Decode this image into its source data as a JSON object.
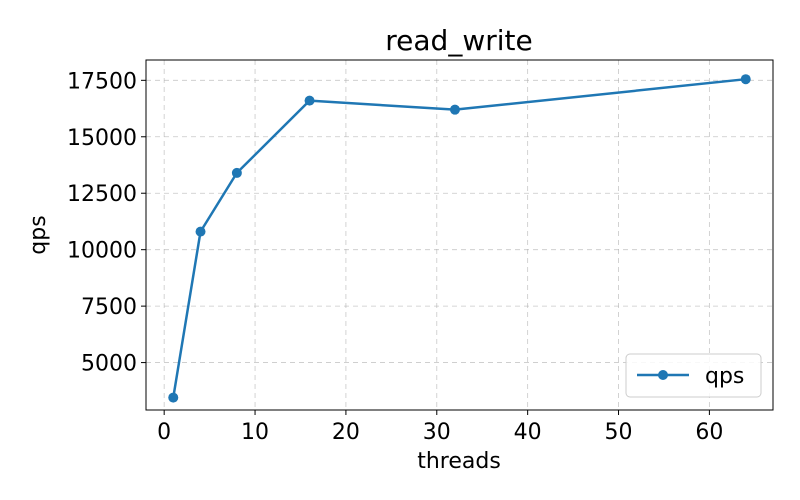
{
  "chart_data": {
    "type": "line",
    "title": "read_write",
    "xlabel": "threads",
    "ylabel": "qps",
    "xlim": [
      -2,
      67
    ],
    "ylim": [
      2900,
      18400
    ],
    "xticks": [
      0,
      10,
      20,
      30,
      40,
      50,
      60
    ],
    "yticks": [
      5000,
      7500,
      10000,
      12500,
      15000,
      17500
    ],
    "grid": true,
    "legend_position": "lower-right",
    "series": [
      {
        "name": "qps",
        "color": "#1f77b4",
        "marker": "circle",
        "x": [
          1,
          4,
          8,
          16,
          32,
          64
        ],
        "y": [
          3450,
          10800,
          13400,
          16600,
          16200,
          17550
        ]
      }
    ]
  }
}
